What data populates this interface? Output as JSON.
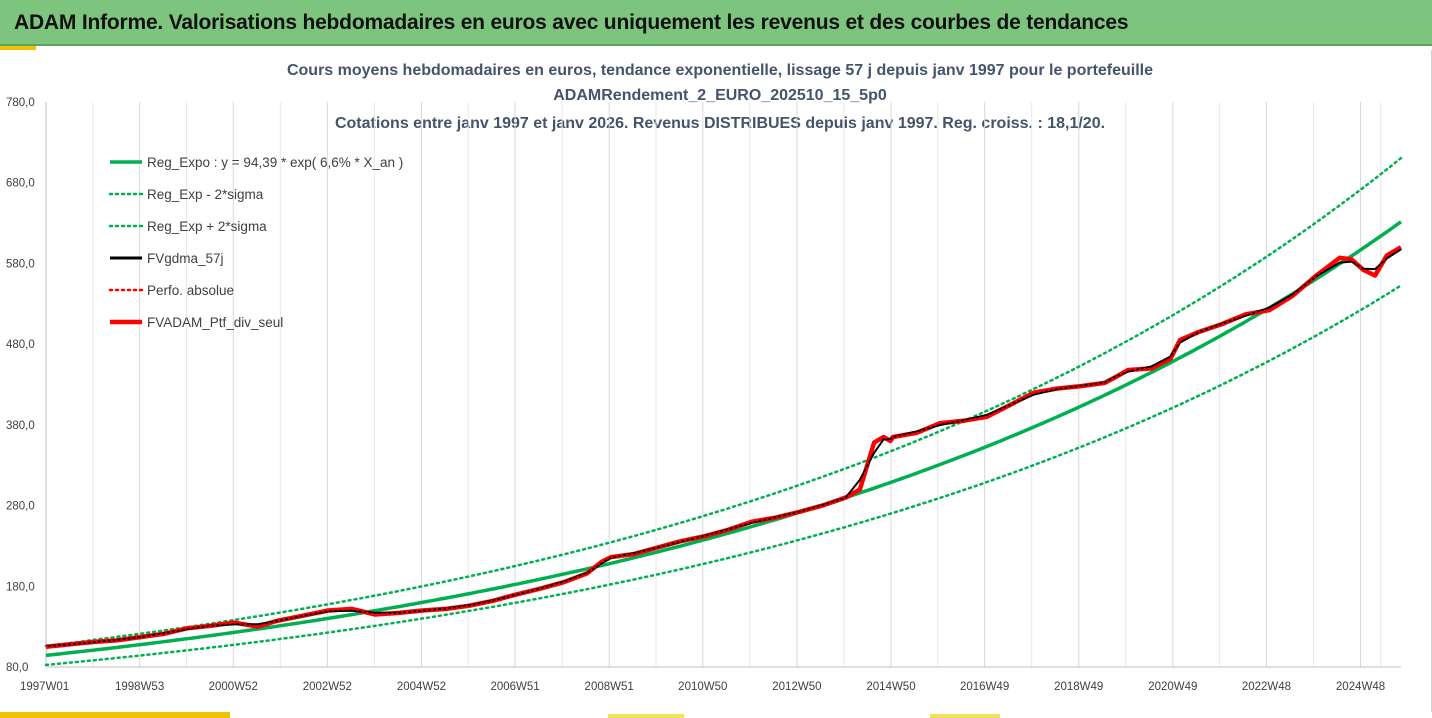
{
  "header": {
    "title": "ADAM Informe. Valorisations hebdomadaires en euros avec uniquement les revenus et des courbes de tendances"
  },
  "colors": {
    "header_bg": "#7dc47f",
    "green_trend": "#00b050",
    "black_series": "#000000",
    "red_series": "#ff0000",
    "title_text": "#44546a",
    "grid": "#d9d9d9"
  },
  "chart_data": {
    "type": "line",
    "title_lines": [
      "Cours moyens hebdomadaires  en euros, tendance exponentielle, lissage 57 j depuis janv 1997 pour le portefeuille",
      "ADAMRendement_2_EURO_202510_15_5p0",
      "Cotations entre janv 1997 et janv 2026. Revenus DISTRIBUES depuis janv 1997. Reg. croiss. : 18,1/20."
    ],
    "y_axis": {
      "min": 80,
      "max": 780,
      "step": 100,
      "tick_labels": [
        "80,0",
        "180,0",
        "280,0",
        "380,0",
        "480,0",
        "580,0",
        "680,0",
        "780,0"
      ]
    },
    "x_axis": {
      "min_year": 1997.0,
      "max_year": 2025.8,
      "ticks": [
        {
          "label": "1997W01",
          "year": 1997.0
        },
        {
          "label": "1998W53",
          "year": 1998.99
        },
        {
          "label": "2000W52",
          "year": 2000.98
        },
        {
          "label": "2002W52",
          "year": 2002.98
        },
        {
          "label": "2004W52",
          "year": 2004.98
        },
        {
          "label": "2006W51",
          "year": 2006.97
        },
        {
          "label": "2008W51",
          "year": 2008.97
        },
        {
          "label": "2010W50",
          "year": 2010.96
        },
        {
          "label": "2012W50",
          "year": 2012.96
        },
        {
          "label": "2014W50",
          "year": 2014.96
        },
        {
          "label": "2016W49",
          "year": 2016.95
        },
        {
          "label": "2018W49",
          "year": 2018.95
        },
        {
          "label": "2020W49",
          "year": 2020.95
        },
        {
          "label": "2022W48",
          "year": 2022.94
        },
        {
          "label": "2024W48",
          "year": 2024.94
        }
      ]
    },
    "grid": "vertical",
    "legend_position": "top-left",
    "regression": {
      "a": 94.39,
      "rate": 0.066,
      "sigma_mult_low": 0.875,
      "sigma_mult_high": 1.125
    },
    "series": [
      {
        "name": "Reg_Expo : y = 94,39 * exp( 6,6% *  X_an )",
        "kind": "regression",
        "color": "#00b050",
        "style": "solid"
      },
      {
        "name": "Reg_Exp - 2*sigma",
        "kind": "lower",
        "color": "#00b050",
        "style": "dotted"
      },
      {
        "name": "Reg_Exp + 2*sigma",
        "kind": "upper",
        "color": "#00b050",
        "style": "dotted"
      },
      {
        "name": "FVgdma_57j",
        "kind": "data",
        "color": "#000000",
        "style": "solid",
        "smooth": true
      },
      {
        "name": "Perfo. absolue",
        "kind": "data",
        "color": "#ff0000",
        "style": "dotted"
      },
      {
        "name": "FVADAM_Ptf_div_seul",
        "kind": "data",
        "color": "#ff0000",
        "style": "solid"
      }
    ],
    "data": {
      "x": [
        1997.0,
        1997.5,
        1998.0,
        1998.5,
        1999.0,
        1999.5,
        2000.0,
        2000.5,
        2001.0,
        2001.5,
        2001.9,
        2002.5,
        2003.0,
        2003.5,
        2004.0,
        2004.5,
        2005.0,
        2005.5,
        2006.0,
        2006.5,
        2007.0,
        2007.5,
        2008.0,
        2008.5,
        2008.8,
        2009.0,
        2009.5,
        2010.0,
        2010.5,
        2011.0,
        2011.5,
        2012.0,
        2012.5,
        2013.0,
        2013.5,
        2014.0,
        2014.3,
        2014.6,
        2014.8,
        2014.95,
        2015.0,
        2015.5,
        2016.0,
        2016.5,
        2017.0,
        2017.5,
        2018.0,
        2018.5,
        2019.0,
        2019.5,
        2019.7,
        2020.0,
        2020.5,
        2020.9,
        2021.1,
        2021.5,
        2022.0,
        2022.5,
        2023.0,
        2023.5,
        2024.0,
        2024.5,
        2024.75,
        2025.0,
        2025.25,
        2025.5,
        2025.8
      ],
      "y": [
        105,
        108,
        111,
        113,
        117,
        121,
        128,
        131,
        135,
        130,
        137,
        144,
        150,
        152,
        145,
        147,
        150,
        152,
        156,
        162,
        170,
        177,
        185,
        196,
        210,
        216,
        220,
        228,
        236,
        242,
        250,
        260,
        265,
        272,
        280,
        290,
        300,
        358,
        365,
        360,
        365,
        370,
        382,
        385,
        390,
        405,
        420,
        425,
        428,
        432,
        438,
        448,
        450,
        462,
        485,
        495,
        505,
        517,
        522,
        540,
        565,
        587,
        585,
        572,
        565,
        590,
        600
      ]
    }
  },
  "icons": []
}
